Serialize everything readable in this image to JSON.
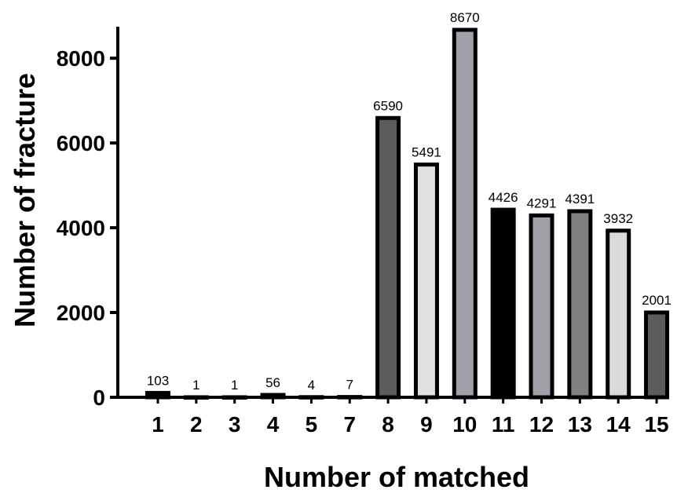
{
  "chart_data": {
    "type": "bar",
    "title": "",
    "xlabel": "Number of matched",
    "ylabel": "Number of fracture",
    "categories": [
      "1",
      "2",
      "3",
      "4",
      "5",
      "7",
      "8",
      "9",
      "10",
      "11",
      "12",
      "13",
      "14",
      "15"
    ],
    "values": [
      103,
      1,
      1,
      56,
      4,
      7,
      6590,
      5491,
      8670,
      4426,
      4291,
      4391,
      3932,
      2001
    ],
    "data_labels": [
      "103",
      "1",
      "1",
      "56",
      "4",
      "7",
      "6590",
      "5491",
      "8670",
      "4426",
      "4291",
      "4391",
      "3932",
      "2001"
    ],
    "bar_colors": [
      "#000000",
      "#000000",
      "#000000",
      "#000000",
      "#000000",
      "#000000",
      "#5c5c5c",
      "#e0e0e0",
      "#a0a0a8",
      "#000000",
      "#a0a0a8",
      "#808080",
      "#d9d9d9",
      "#5c5c5c"
    ],
    "bar_outline": "#000000",
    "ylim": [
      0,
      8670
    ],
    "yticks": [
      0,
      2000,
      4000,
      6000,
      8000
    ],
    "ytick_labels": [
      "0",
      "2000",
      "4000",
      "6000",
      "8000"
    ],
    "grid": false,
    "legend": "none"
  }
}
